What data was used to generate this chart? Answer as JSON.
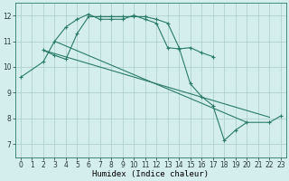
{
  "xlabel": "Humidex (Indice chaleur)",
  "background_color": "#d4eeee",
  "grid_color": "#aacccc",
  "line_color": "#2a7a6a",
  "xlim": [
    -0.5,
    23.5
  ],
  "ylim": [
    6.5,
    12.5
  ],
  "xticks": [
    0,
    1,
    2,
    3,
    4,
    5,
    6,
    7,
    8,
    9,
    10,
    11,
    12,
    13,
    14,
    15,
    16,
    17,
    18,
    19,
    20,
    21,
    22,
    23
  ],
  "yticks": [
    7,
    8,
    9,
    10,
    11,
    12
  ],
  "line1_x": [
    0,
    2,
    3,
    4,
    5,
    6,
    7,
    8,
    9,
    10,
    11,
    12,
    13,
    14,
    15,
    16,
    17
  ],
  "line1_y": [
    9.6,
    10.2,
    11.0,
    11.55,
    11.85,
    12.05,
    11.85,
    11.85,
    11.85,
    12.0,
    11.85,
    11.7,
    10.75,
    10.7,
    10.75,
    10.55,
    10.4
  ],
  "line2_x": [
    2,
    3,
    4,
    5,
    6,
    7,
    8,
    9,
    10,
    11,
    12,
    13,
    14,
    15,
    16,
    17,
    18,
    19,
    20,
    22,
    23
  ],
  "line2_y": [
    10.65,
    10.45,
    10.3,
    11.3,
    11.95,
    11.95,
    11.95,
    11.95,
    11.95,
    11.95,
    11.85,
    11.7,
    10.75,
    9.35,
    8.85,
    8.5,
    7.15,
    7.55,
    7.85,
    7.85,
    8.1
  ],
  "line3_x": [
    3,
    20
  ],
  "line3_y": [
    11.0,
    7.85
  ],
  "line4_x": [
    2,
    22
  ],
  "line4_y": [
    10.65,
    8.05
  ]
}
